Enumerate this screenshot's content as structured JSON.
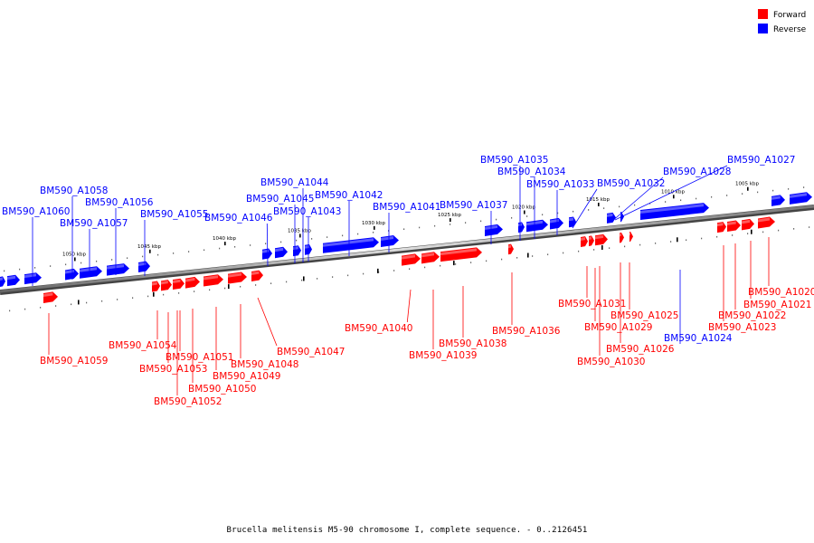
{
  "legend": {
    "forward": {
      "label": "Forward",
      "color": "#ff0000"
    },
    "reverse": {
      "label": "Reverse",
      "color": "#0000ff"
    }
  },
  "caption": "Brucella melitensis M5-90 chromosome I, complete sequence. - 0..2126451",
  "ticks": [
    "1005 kbp",
    "1010 kbp",
    "1015 kbp",
    "1020 kbp",
    "1025 kbp",
    "1030 kbp",
    "1035 kbp",
    "1040 kbp",
    "1045 kbp",
    "1050 kbp"
  ],
  "genes": {
    "reverse": [
      "BM590_A1027",
      "BM590_A1028",
      "BM590_A1032",
      "BM590_A1035",
      "BM590_A1034",
      "BM590_A1033",
      "BM590_A1037",
      "BM590_A1041",
      "BM590_A1042",
      "BM590_A1044",
      "BM590_A1045",
      "BM590_A1043",
      "BM590_A1046",
      "BM590_A1055",
      "BM590_A1058",
      "BM590_A1056",
      "BM590_A1057",
      "BM590_A1060",
      "BM590_A1024"
    ],
    "forward": [
      "BM590_A1020",
      "BM590_A1021",
      "BM590_A1022",
      "BM590_A1023",
      "BM590_A1025",
      "BM590_A1031",
      "BM590_A1029",
      "BM590_A1026",
      "BM590_A1030",
      "BM590_A1036",
      "BM590_A1038",
      "BM590_A1039",
      "BM590_A1040",
      "BM590_A1047",
      "BM590_A1048",
      "BM590_A1049",
      "BM590_A1050",
      "BM590_A1051",
      "BM590_A1053",
      "BM590_A1052",
      "BM590_A1054",
      "BM590_A1059"
    ]
  }
}
